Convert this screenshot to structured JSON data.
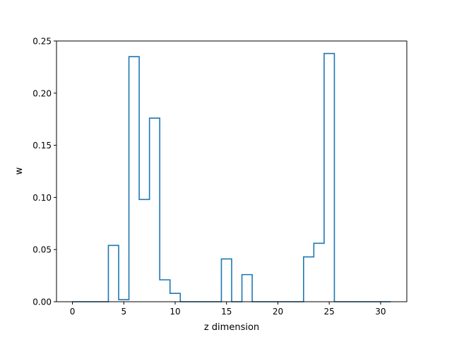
{
  "chart_data": {
    "type": "line",
    "style": "step",
    "xlabel": "z dimension",
    "ylabel": "w",
    "xlim": [
      -1.55,
      32.55
    ],
    "ylim": [
      0,
      0.25
    ],
    "xticks": [
      0,
      5,
      10,
      15,
      20,
      25,
      30
    ],
    "yticks": [
      0.0,
      0.05,
      0.1,
      0.15,
      0.2,
      0.25
    ],
    "ytick_labels": [
      "0.00",
      "0.05",
      "0.10",
      "0.15",
      "0.20",
      "0.25"
    ],
    "grid": false,
    "colors": {
      "series": "#1f77b4",
      "axes": "#000000",
      "background": "#ffffff"
    },
    "series": [
      {
        "x": [
          0,
          1,
          2,
          3,
          4,
          5,
          6,
          7,
          8,
          9,
          10,
          11,
          12,
          13,
          14,
          15,
          16,
          17,
          18,
          19,
          20,
          21,
          22,
          23,
          24,
          25,
          26,
          27,
          28,
          29,
          30,
          31
        ],
        "values": [
          0,
          0,
          0,
          0,
          0.054,
          0.002,
          0.235,
          0.098,
          0.176,
          0.021,
          0.008,
          0,
          0,
          0,
          0,
          0.041,
          0,
          0.026,
          0,
          0,
          0,
          0,
          0,
          0.043,
          0.056,
          0.238,
          0,
          0,
          0,
          0,
          0,
          0
        ]
      }
    ]
  }
}
